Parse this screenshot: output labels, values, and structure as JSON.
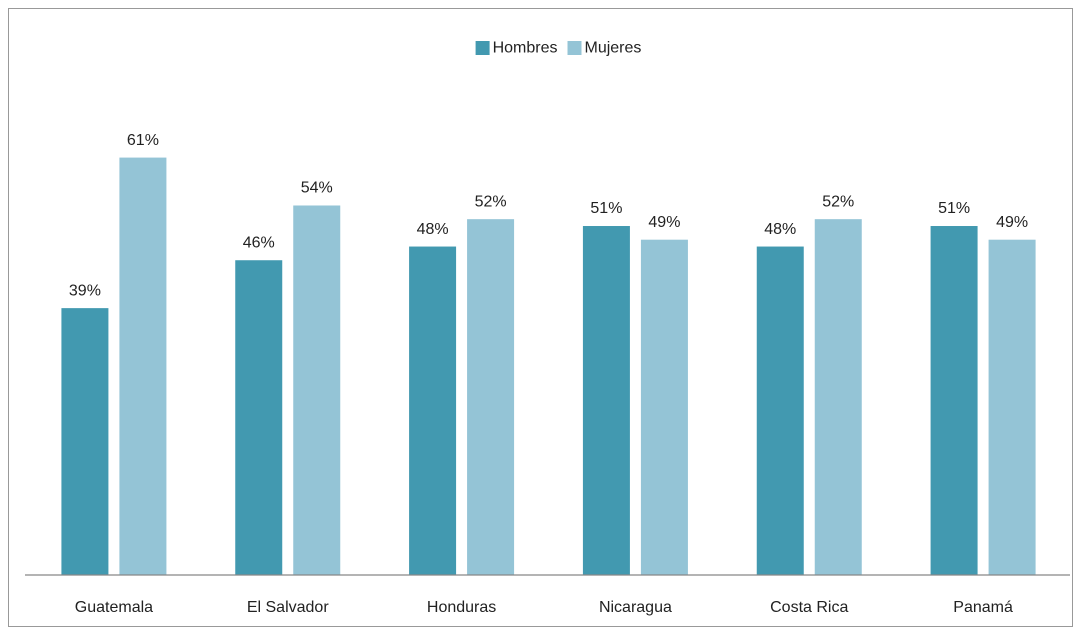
{
  "chart_data": {
    "type": "bar",
    "categories": [
      "Guatemala",
      "El Salvador",
      "Honduras",
      "Nicaragua",
      "Costa Rica",
      "Panamá"
    ],
    "series": [
      {
        "name": "Hombres",
        "color": "#4299b0",
        "values": [
          39,
          46,
          48,
          51,
          48,
          51
        ],
        "value_labels": [
          "39%",
          "46%",
          "48%",
          "51%",
          "48%",
          "51%"
        ]
      },
      {
        "name": "Mujeres",
        "color": "#94c4d6",
        "values": [
          61,
          54,
          52,
          49,
          52,
          49
        ],
        "value_labels": [
          "61%",
          "54%",
          "52%",
          "49%",
          "52%",
          "49%"
        ]
      }
    ],
    "ylim": [
      0,
      70
    ],
    "legend": "top"
  }
}
